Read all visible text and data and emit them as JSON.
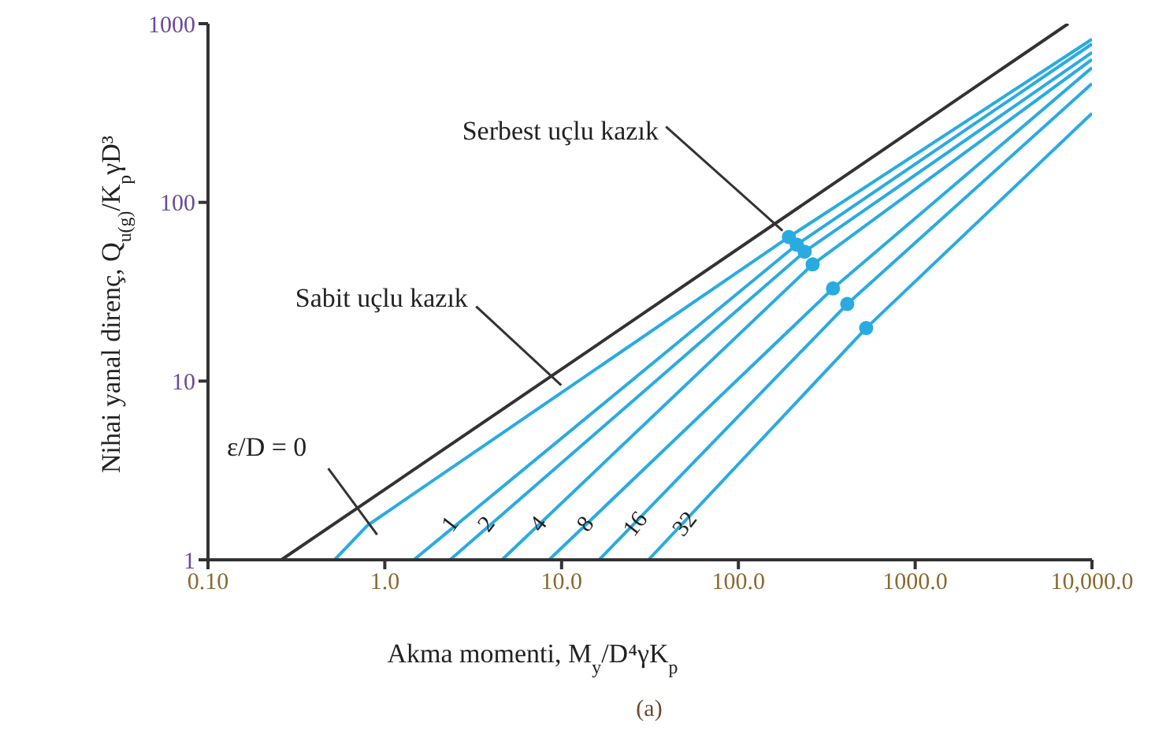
{
  "chart_data": {
    "type": "line",
    "subtitle": "(a)",
    "xlabel": "Akma momenti, M$_{y}$/D⁴γK$_{p}$",
    "ylabel": "Nihai yanal direnç, Q$_{u(g)}$/K$_{p}$γD³",
    "log": "xy",
    "grid": false,
    "legend": false,
    "marker": "none",
    "line_style": "solid",
    "xlim": [
      0.1,
      10000
    ],
    "xticks": [
      {
        "value": 0.1,
        "label": "0.10"
      },
      {
        "value": 1,
        "label": "1.0"
      },
      {
        "value": 10,
        "label": "10.0"
      },
      {
        "value": 100,
        "label": "100.0"
      },
      {
        "value": 1000,
        "label": "1000.0"
      },
      {
        "value": 10000,
        "label": "10,000.0"
      }
    ],
    "annotations": [
      {
        "text": "Sabit uçlu kazık",
        "x": 8.8,
        "y": 10.7
      },
      {
        "text": "Serbest uçlu kazık",
        "x": 193,
        "y": 64
      }
    ],
    "ylim": [
      1,
      1000
    ],
    "yticks": [
      1,
      10,
      100,
      1000
    ],
    "series": [
      {
        "color": "#333333",
        "x": [
          0.26,
          8.8,
          7340
        ],
        "values": [
          1,
          10.7,
          1000
        ]
      },
      {
        "name": "ε/D = 0",
        "color": "#29abe2",
        "x": [
          0.52,
          0.8,
          193,
          10000
        ],
        "values": [
          1,
          1.56,
          64,
          818
        ]
      },
      {
        "name": "1",
        "color": "#29abe2",
        "x": [
          1.46,
          214,
          10000
        ],
        "values": [
          1,
          58,
          770
        ]
      },
      {
        "name": "2",
        "color": "#29abe2",
        "x": [
          2.34,
          237,
          10000
        ],
        "values": [
          1,
          53,
          690
        ]
      },
      {
        "name": "4",
        "color": "#29abe2",
        "x": [
          4.6,
          263,
          10000
        ],
        "values": [
          1,
          45,
          630
        ]
      },
      {
        "name": "8",
        "color": "#29abe2",
        "x": [
          8.5,
          343,
          10000
        ],
        "values": [
          1,
          33,
          567
        ]
      },
      {
        "name": "16",
        "color": "#29abe2",
        "x": [
          16.3,
          413,
          10000
        ],
        "values": [
          1,
          27,
          462
        ]
      },
      {
        "name": "32",
        "color": "#29abe2",
        "x": [
          31,
          528,
          10000
        ],
        "values": [
          1,
          19.8,
          315
        ]
      },
      {
        "type": "scatter",
        "marker": "circle",
        "color": "#29abe2",
        "x": [
          193,
          214,
          237,
          263,
          343,
          413,
          528
        ],
        "values": [
          64,
          58,
          53,
          45,
          33,
          27,
          19.8
        ]
      }
    ]
  }
}
